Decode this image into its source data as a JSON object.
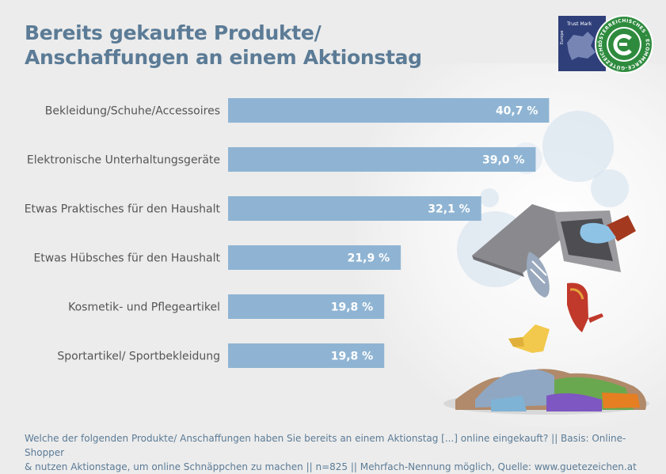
{
  "title": {
    "line1": "Bereits gekaufte Produkte/",
    "line2": "Anschaffungen an einem Aktionstag"
  },
  "logo": {
    "icon": "ecommerce-guetezeichen-seal-icon",
    "ring_text": "ÖSTERREICHISCHES · ECOMMERCE-GÜTEZEICHEN",
    "badge_text": "Trust Mark",
    "badge_subtext": "Europe"
  },
  "colors": {
    "bar": "#8fb4d3",
    "bar_label": "#ffffff",
    "text": "#555555",
    "title": "#5b7b96",
    "background": "#ececec"
  },
  "chart_data": {
    "type": "bar",
    "orientation": "horizontal",
    "categories": [
      "Bekleidung/Schuhe/Accessoires",
      "Elektronische Unterhaltungsgeräte",
      "Etwas Praktisches für den Haushalt",
      "Etwas Hübsches für den Haushalt",
      "Kosmetik- und Pflegeartikel",
      "Sportartikel/ Sportbekleidung"
    ],
    "values": [
      40.7,
      39.0,
      32.1,
      21.9,
      19.8,
      19.8
    ],
    "value_labels": [
      "40,7 %",
      "39,0 %",
      "32,1 %",
      "21,9 %",
      "19,8 %",
      "19,8 %"
    ],
    "unit": "%",
    "xlim": [
      0,
      100
    ],
    "grid": false,
    "legend": "none"
  },
  "footnote": {
    "line1": "Welche der folgenden Produkte/ Anschaffungen haben Sie bereits an einem Aktionstag [...] online eingekauft? || Basis: Online-Shopper",
    "line2": "& nutzen Aktionstage, um online Schnäppchen zu machen || n=825 || Mehrfach-Nennung möglich, Quelle: www.guetezeichen.at"
  }
}
